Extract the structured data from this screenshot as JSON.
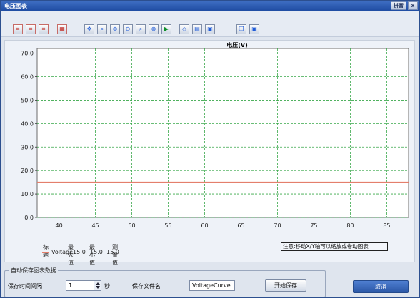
{
  "window": {
    "title": "电压图表",
    "title_buttons": [
      "拼音",
      "x"
    ]
  },
  "toolbar": {
    "tools": [
      {
        "name": "axis-mode-1-icon",
        "glyph": "⌗",
        "tone": "red"
      },
      {
        "name": "axis-mode-2-icon",
        "glyph": "⌗",
        "tone": "red"
      },
      {
        "name": "axis-mode-3-icon",
        "glyph": "⌗",
        "tone": "red"
      },
      {
        "name": "grid-toggle-icon",
        "glyph": "▦",
        "tone": "red"
      },
      {
        "name": "move-cursor-icon",
        "glyph": "✥",
        "tone": "blue"
      },
      {
        "name": "zoom-region-icon",
        "glyph": "⌕",
        "tone": "blue"
      },
      {
        "name": "zoom-in-icon",
        "glyph": "⊕",
        "tone": "blue"
      },
      {
        "name": "zoom-out-icon",
        "glyph": "⊖",
        "tone": "blue"
      },
      {
        "name": "zoom-fit-icon",
        "glyph": "⌕",
        "tone": "blue"
      },
      {
        "name": "zoom-reset-icon",
        "glyph": "⊗",
        "tone": "blue"
      },
      {
        "name": "play-icon",
        "glyph": "▶",
        "tone": "green"
      },
      {
        "name": "eraser-icon",
        "glyph": "◇",
        "tone": "blue"
      },
      {
        "name": "print-icon",
        "glyph": "▤",
        "tone": "blue"
      },
      {
        "name": "save-icon",
        "glyph": "▣",
        "tone": "blue"
      },
      {
        "name": "copy-icon",
        "glyph": "❐",
        "tone": "blue"
      },
      {
        "name": "export-icon",
        "glyph": "▣",
        "tone": "blue"
      }
    ]
  },
  "chart_data": {
    "type": "line",
    "title": "电压(V)",
    "xlabel": "",
    "ylabel": "",
    "xlim": [
      37,
      88
    ],
    "ylim": [
      0,
      72
    ],
    "x_ticks": [
      40,
      45,
      50,
      55,
      60,
      65,
      70,
      75,
      80,
      85
    ],
    "y_ticks": [
      "0.0",
      "10.0",
      "20.0",
      "30.0",
      "40.0",
      "50.0",
      "60.0",
      "70.0"
    ],
    "grid": true,
    "series": [
      {
        "name": "Voltage",
        "x": [
          37,
          88
        ],
        "y": [
          15.0,
          15.0
        ],
        "color": "#e47f6c"
      }
    ],
    "colors": {
      "grid": "#39a84a",
      "axis_frame": "#6b6b6b",
      "plot_bg": "#ffffff"
    }
  },
  "legend": {
    "headers": [
      "标题",
      "最大值",
      "最小值",
      "测量值"
    ],
    "rows": [
      {
        "name": "Voltage",
        "max": "15.0",
        "min": "15.0",
        "measured": "15.0"
      }
    ]
  },
  "note": "注意:移动X/Y轴可以缩放或卷动图表",
  "autosave": {
    "group_title": "自动保存图表数据",
    "interval_label": "保存时间间隔",
    "interval_value": "1",
    "interval_unit": "秒",
    "filename_label": "保存文件名",
    "filename_value": "VoltageCurve",
    "start_button": "开始保存"
  },
  "cancel_button": "取消"
}
